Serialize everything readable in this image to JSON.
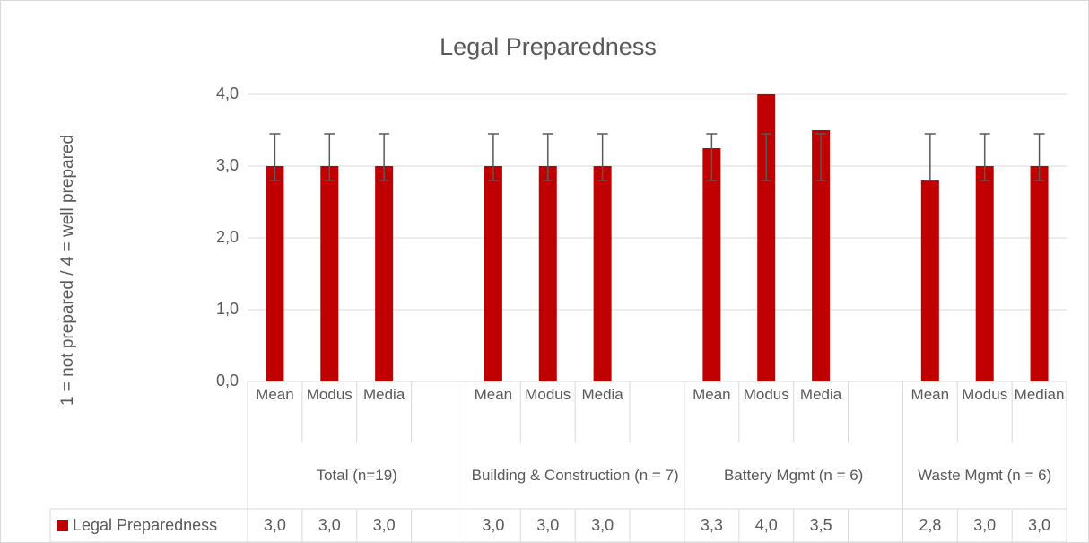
{
  "chart_data": {
    "type": "bar",
    "title": "Legal Preparedness",
    "y_label": "1 = not prepared / 4 = well prepared",
    "categories": [
      "Mean",
      "Modus",
      "Media",
      null,
      "Mean",
      "Modus",
      "Media",
      null,
      "Mean",
      "Modus",
      "Media",
      null,
      "Mean",
      "Modus",
      "Median"
    ],
    "groups": [
      "Total (n=19)",
      "Building & Construction (n = 7)",
      "Battery Mgmt (n = 6)",
      "Waste Mgmt (n = 6)"
    ],
    "series": [
      {
        "name": "Legal Preparedness",
        "color": "#c00000",
        "values": [
          3.0,
          3.0,
          3.0,
          null,
          3.0,
          3.0,
          3.0,
          null,
          3.25,
          4.0,
          3.5,
          null,
          2.8,
          3.0,
          3.0
        ],
        "value_labels": [
          "3,0",
          "3,0",
          "3,0",
          null,
          "3,0",
          "3,0",
          "3,0",
          null,
          "3,3",
          "4,0",
          "3,5",
          null,
          "2,8",
          "3,0",
          "3,0"
        ],
        "error_low": [
          2.8,
          2.8,
          2.8,
          null,
          2.8,
          2.8,
          2.8,
          null,
          2.8,
          2.8,
          2.8,
          null,
          2.8,
          2.8,
          2.8
        ],
        "error_high": [
          3.45,
          3.45,
          3.45,
          null,
          3.45,
          3.45,
          3.45,
          null,
          3.45,
          3.45,
          3.45,
          null,
          3.45,
          3.45,
          3.45
        ]
      }
    ],
    "ylim": [
      0,
      4
    ],
    "yticks": [
      {
        "value": 0,
        "label": "0,0"
      },
      {
        "value": 1,
        "label": "1,0"
      },
      {
        "value": 2,
        "label": "2,0"
      },
      {
        "value": 3,
        "label": "3,0"
      },
      {
        "value": 4,
        "label": "4,0"
      }
    ],
    "grid": true
  }
}
